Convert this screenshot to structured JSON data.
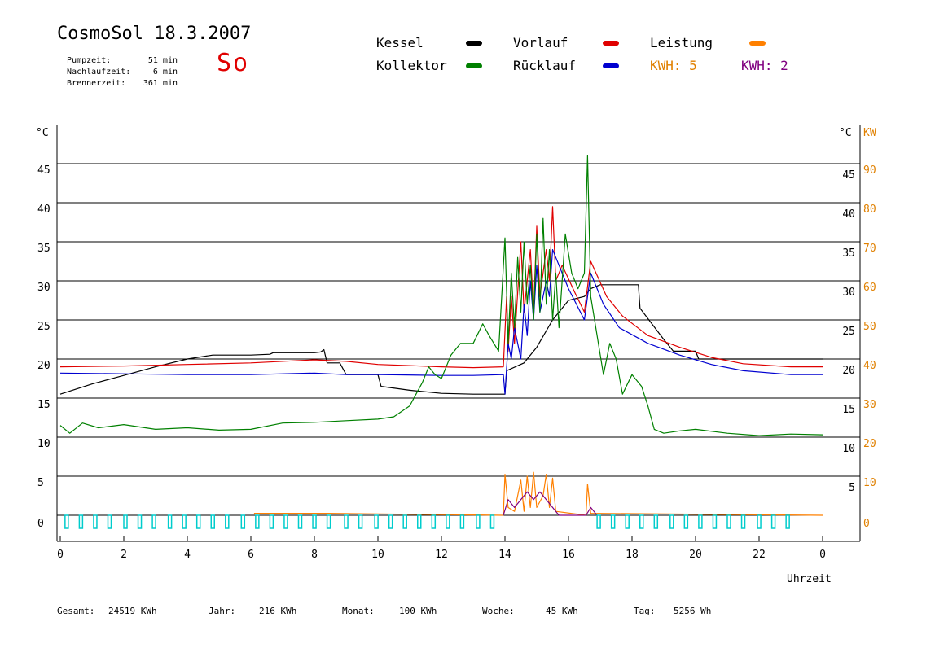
{
  "header": {
    "title": "CosmoSol 18.3.2007",
    "stats": [
      {
        "label": "Pumpzeit:",
        "value": "51 min"
      },
      {
        "label": "Nachlaufzeit:",
        "value": "6 min"
      },
      {
        "label": "Brennerzeit:",
        "value": "361 min"
      }
    ],
    "day": "So"
  },
  "legend": {
    "items": [
      {
        "label": "Kessel",
        "color": "#000000"
      },
      {
        "label": "Kollektor",
        "color": "#008000"
      },
      {
        "label": "Vorlauf",
        "color": "#e00000"
      },
      {
        "label": "Rücklauf",
        "color": "#0000d0"
      },
      {
        "label": "Leistung",
        "color": "#ff8000"
      }
    ],
    "kwh1": "KWH: 5",
    "kwh1_color": "#e08000",
    "kwh2": "KWH: 2",
    "kwh2_color": "#800080"
  },
  "footer": {
    "gesamt_label": "Gesamt:",
    "gesamt_value": "24519 KWh",
    "jahr_label": "Jahr:",
    "jahr_value": "216 KWh",
    "monat_label": "Monat:",
    "monat_value": "100 KWh",
    "woche_label": "Woche:",
    "woche_value": "45 KWh",
    "tag_label": "Tag:",
    "tag_value": "5256 Wh"
  },
  "chart_data": {
    "type": "line",
    "xlabel": "Uhrzeit",
    "x_ticks": [
      "0",
      "2",
      "4",
      "6",
      "8",
      "10",
      "12",
      "14",
      "16",
      "18",
      "20",
      "22",
      "0"
    ],
    "xlim": [
      0,
      24
    ],
    "ylabel_left": "°C",
    "ylabel_right_temp": "°C",
    "ylabel_right_power": "KW",
    "ylim": [
      0,
      45
    ],
    "y_ticks_left": [
      0,
      5,
      10,
      15,
      20,
      25,
      30,
      35,
      40,
      45
    ],
    "y_ticks_right_temp": [
      5,
      10,
      15,
      20,
      25,
      30,
      35,
      40,
      45
    ],
    "y_ticks_right_power": [
      0,
      10,
      20,
      30,
      40,
      50,
      60,
      70,
      80,
      90
    ],
    "grid": true,
    "series": [
      {
        "name": "Kessel",
        "color": "#000000",
        "points": [
          [
            0,
            15.5
          ],
          [
            1,
            16.8
          ],
          [
            2,
            17.9
          ],
          [
            3,
            19.0
          ],
          [
            4,
            20.0
          ],
          [
            4.8,
            20.5
          ],
          [
            6,
            20.5
          ],
          [
            6.6,
            20.6
          ],
          [
            6.7,
            20.8
          ],
          [
            8,
            20.8
          ],
          [
            8.2,
            20.9
          ],
          [
            8.3,
            21.2
          ],
          [
            8.4,
            19.5
          ],
          [
            8.8,
            19.5
          ],
          [
            9.0,
            18.0
          ],
          [
            10,
            18.0
          ],
          [
            10.1,
            16.5
          ],
          [
            11,
            16.0
          ],
          [
            12,
            15.6
          ],
          [
            13,
            15.5
          ],
          [
            14,
            15.5
          ],
          [
            14.05,
            18.5
          ],
          [
            14.6,
            19.5
          ],
          [
            15,
            21.5
          ],
          [
            15.5,
            25
          ],
          [
            16,
            27.5
          ],
          [
            16.5,
            28.0
          ],
          [
            16.7,
            29.0
          ],
          [
            17,
            29.5
          ],
          [
            18.2,
            29.5
          ],
          [
            18.25,
            26.5
          ],
          [
            19,
            22.5
          ],
          [
            19.3,
            21.0
          ],
          [
            20,
            21.0
          ],
          [
            20.1,
            20.0
          ],
          [
            22,
            20.0
          ],
          [
            24,
            20.0
          ]
        ]
      },
      {
        "name": "Vorlauf",
        "color": "#e00000",
        "points": [
          [
            0,
            19.0
          ],
          [
            2,
            19.1
          ],
          [
            4,
            19.3
          ],
          [
            6,
            19.5
          ],
          [
            8,
            19.9
          ],
          [
            9,
            19.7
          ],
          [
            10,
            19.3
          ],
          [
            12,
            19.0
          ],
          [
            13,
            18.9
          ],
          [
            13.95,
            19.0
          ],
          [
            14.05,
            28
          ],
          [
            14.1,
            21
          ],
          [
            14.2,
            28
          ],
          [
            14.3,
            22
          ],
          [
            14.5,
            35
          ],
          [
            14.6,
            26
          ],
          [
            14.8,
            34
          ],
          [
            14.9,
            26
          ],
          [
            15.0,
            37
          ],
          [
            15.1,
            28
          ],
          [
            15.3,
            34
          ],
          [
            15.4,
            30
          ],
          [
            15.5,
            39.5
          ],
          [
            15.6,
            30
          ],
          [
            15.8,
            32
          ],
          [
            16.2,
            28.5
          ],
          [
            16.5,
            26
          ],
          [
            16.7,
            32.5
          ],
          [
            17.2,
            28
          ],
          [
            17.7,
            25.5
          ],
          [
            18.5,
            23
          ],
          [
            19.5,
            21.5
          ],
          [
            20.5,
            20.2
          ],
          [
            21.5,
            19.4
          ],
          [
            23,
            19.0
          ],
          [
            24,
            19.0
          ]
        ]
      },
      {
        "name": "Rücklauf",
        "color": "#0000d0",
        "points": [
          [
            0,
            18.2
          ],
          [
            2,
            18.1
          ],
          [
            4,
            18.0
          ],
          [
            6,
            18.0
          ],
          [
            8,
            18.2
          ],
          [
            9,
            18.0
          ],
          [
            10,
            18.0
          ],
          [
            12,
            17.9
          ],
          [
            13,
            17.9
          ],
          [
            13.95,
            18.0
          ],
          [
            14.0,
            15.5
          ],
          [
            14.1,
            22
          ],
          [
            14.2,
            20
          ],
          [
            14.3,
            24
          ],
          [
            14.5,
            20
          ],
          [
            14.6,
            27
          ],
          [
            14.7,
            23
          ],
          [
            14.8,
            30
          ],
          [
            14.9,
            25
          ],
          [
            15.0,
            32
          ],
          [
            15.1,
            26
          ],
          [
            15.3,
            30
          ],
          [
            15.4,
            28
          ],
          [
            15.5,
            34
          ],
          [
            15.7,
            32
          ],
          [
            16.0,
            29
          ],
          [
            16.5,
            25
          ],
          [
            16.7,
            31
          ],
          [
            17.1,
            27
          ],
          [
            17.6,
            24
          ],
          [
            18.5,
            22
          ],
          [
            19.5,
            20.5
          ],
          [
            20.5,
            19.3
          ],
          [
            21.5,
            18.5
          ],
          [
            23,
            18.0
          ],
          [
            24,
            18.0
          ]
        ]
      },
      {
        "name": "Kollektor",
        "color": "#008000",
        "points": [
          [
            0,
            11.5
          ],
          [
            0.3,
            10.5
          ],
          [
            0.7,
            11.8
          ],
          [
            1.2,
            11.2
          ],
          [
            2,
            11.6
          ],
          [
            3,
            11.0
          ],
          [
            4,
            11.2
          ],
          [
            5,
            10.9
          ],
          [
            6,
            11.0
          ],
          [
            7,
            11.8
          ],
          [
            8,
            11.9
          ],
          [
            9,
            12.1
          ],
          [
            10,
            12.3
          ],
          [
            10.5,
            12.6
          ],
          [
            11,
            14.0
          ],
          [
            11.4,
            17.0
          ],
          [
            11.6,
            19.0
          ],
          [
            11.8,
            18.0
          ],
          [
            12,
            17.5
          ],
          [
            12.3,
            20.5
          ],
          [
            12.6,
            22.0
          ],
          [
            13.0,
            22.0
          ],
          [
            13.3,
            24.5
          ],
          [
            13.5,
            23
          ],
          [
            13.8,
            21
          ],
          [
            14.0,
            35.5
          ],
          [
            14.1,
            22
          ],
          [
            14.2,
            31
          ],
          [
            14.3,
            24
          ],
          [
            14.4,
            33
          ],
          [
            14.5,
            26
          ],
          [
            14.6,
            35
          ],
          [
            14.7,
            27
          ],
          [
            14.8,
            32
          ],
          [
            14.9,
            25
          ],
          [
            15.0,
            36
          ],
          [
            15.1,
            26
          ],
          [
            15.2,
            38
          ],
          [
            15.3,
            27
          ],
          [
            15.4,
            34
          ],
          [
            15.5,
            25
          ],
          [
            15.6,
            31
          ],
          [
            15.7,
            24
          ],
          [
            15.9,
            36
          ],
          [
            16.1,
            31
          ],
          [
            16.3,
            29
          ],
          [
            16.5,
            31
          ],
          [
            16.6,
            46
          ],
          [
            16.7,
            28
          ],
          [
            16.9,
            23
          ],
          [
            17.1,
            18
          ],
          [
            17.3,
            22
          ],
          [
            17.5,
            20
          ],
          [
            17.7,
            15.5
          ],
          [
            18,
            18
          ],
          [
            18.3,
            16.5
          ],
          [
            18.5,
            14
          ],
          [
            18.7,
            11
          ],
          [
            19,
            10.5
          ],
          [
            19.5,
            10.8
          ],
          [
            20,
            11
          ],
          [
            21,
            10.5
          ],
          [
            22,
            10.2
          ],
          [
            23,
            10.4
          ],
          [
            24,
            10.3
          ]
        ]
      },
      {
        "name": "Leistung",
        "color": "#ff8000",
        "unit": "KW",
        "points": [
          [
            6.1,
            0.5
          ],
          [
            8.4,
            0.5
          ],
          [
            13.95,
            0
          ],
          [
            14.0,
            10.5
          ],
          [
            14.1,
            2
          ],
          [
            14.3,
            1
          ],
          [
            14.5,
            9
          ],
          [
            14.6,
            1
          ],
          [
            14.7,
            10
          ],
          [
            14.8,
            2
          ],
          [
            14.9,
            11
          ],
          [
            15.0,
            2
          ],
          [
            15.2,
            5
          ],
          [
            15.3,
            10.5
          ],
          [
            15.4,
            2
          ],
          [
            15.5,
            9.5
          ],
          [
            15.6,
            1
          ],
          [
            16.55,
            0
          ],
          [
            16.6,
            8
          ],
          [
            16.7,
            0.5
          ],
          [
            24,
            0
          ]
        ]
      },
      {
        "name": "KWH 2",
        "color": "#800080",
        "points": [
          [
            13.95,
            0
          ],
          [
            14.1,
            2
          ],
          [
            14.3,
            1
          ],
          [
            14.5,
            2
          ],
          [
            14.7,
            3
          ],
          [
            14.9,
            2
          ],
          [
            15.1,
            3
          ],
          [
            15.3,
            2
          ],
          [
            15.5,
            1
          ],
          [
            15.7,
            0
          ],
          [
            16.55,
            0
          ],
          [
            16.7,
            1
          ],
          [
            16.9,
            0
          ]
        ]
      },
      {
        "name": "Pumpe",
        "color": "#00cccc",
        "pulses": [
          0.15,
          0.6,
          1.05,
          1.5,
          2.0,
          2.45,
          2.9,
          3.4,
          3.85,
          4.3,
          4.75,
          5.2,
          5.7,
          6.15,
          6.6,
          7.05,
          7.5,
          7.95,
          8.4,
          8.95,
          9.4,
          9.9,
          10.35,
          10.8,
          11.25,
          11.7,
          12.15,
          12.6,
          13.1,
          13.55,
          16.9,
          17.35,
          17.8,
          18.25,
          18.7,
          19.2,
          19.65,
          20.1,
          20.55,
          21.0,
          21.45,
          21.95,
          22.4,
          22.85
        ]
      }
    ]
  }
}
